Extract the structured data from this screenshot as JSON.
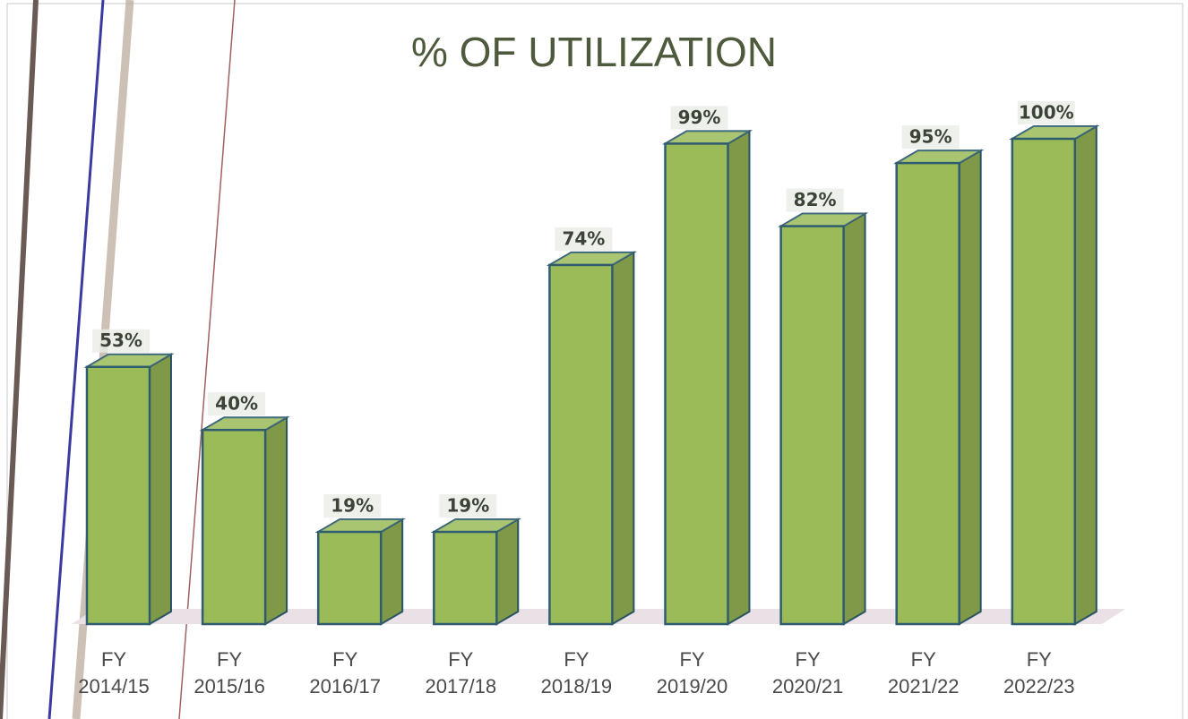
{
  "chart_data": {
    "type": "bar3d",
    "title": "% OF UTILIZATION",
    "categories": [
      "FY 2014/15",
      "FY 2015/16",
      "FY 2016/17",
      "FY 2017/18",
      "FY 2018/19",
      "FY 2019/20",
      "FY 2020/21",
      "FY 2021/22",
      "FY 2022/23"
    ],
    "values": [
      53,
      40,
      19,
      19,
      74,
      99,
      82,
      95,
      100
    ],
    "value_labels": [
      "53%",
      "40%",
      "19%",
      "19%",
      "74%",
      "99%",
      "82%",
      "95%",
      "100%"
    ],
    "color": "#9bbb59"
  }
}
